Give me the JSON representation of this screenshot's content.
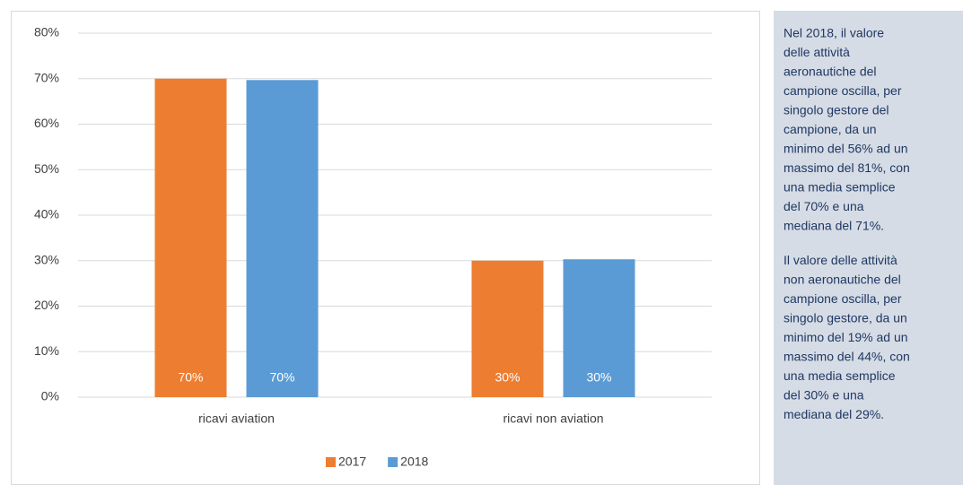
{
  "chart_data": {
    "type": "bar",
    "categories": [
      "ricavi aviation",
      "ricavi non aviation"
    ],
    "series": [
      {
        "name": "2017",
        "color": "#ed7d31",
        "values": [
          70,
          30
        ],
        "value_labels": [
          "70%",
          "30%"
        ]
      },
      {
        "name": "2018",
        "color": "#5b9bd5",
        "values": [
          69.7,
          30.3
        ],
        "value_labels": [
          "70%",
          "30%"
        ]
      }
    ],
    "ylim": [
      0,
      80
    ],
    "yticks": [
      {
        "value": 0,
        "label": "0%"
      },
      {
        "value": 10,
        "label": "10%"
      },
      {
        "value": 20,
        "label": "20%"
      },
      {
        "value": 30,
        "label": "30%"
      },
      {
        "value": 40,
        "label": "40%"
      },
      {
        "value": 50,
        "label": "50%"
      },
      {
        "value": 60,
        "label": "60%"
      },
      {
        "value": 70,
        "label": "70%"
      },
      {
        "value": 80,
        "label": "80%"
      }
    ],
    "grid": true,
    "legend": "bottom"
  },
  "panel": {
    "paragraphs": [
      [
        "Nel 2018, il valore",
        "delle attività",
        "aeronautiche del",
        "campione oscilla, per",
        "singolo gestore del",
        "campione, da un",
        "minimo del 56% ad un",
        "massimo del 81%, con",
        "una media semplice",
        "del 70% e una",
        "mediana del 71%."
      ],
      [
        "Il valore delle attività",
        "non aeronautiche del",
        "campione oscilla, per",
        "singolo gestore, da un",
        "minimo del 19% ad un",
        "massimo del 44%, con",
        "una media semplice",
        "del 30% e una",
        "mediana del 29%."
      ]
    ]
  }
}
